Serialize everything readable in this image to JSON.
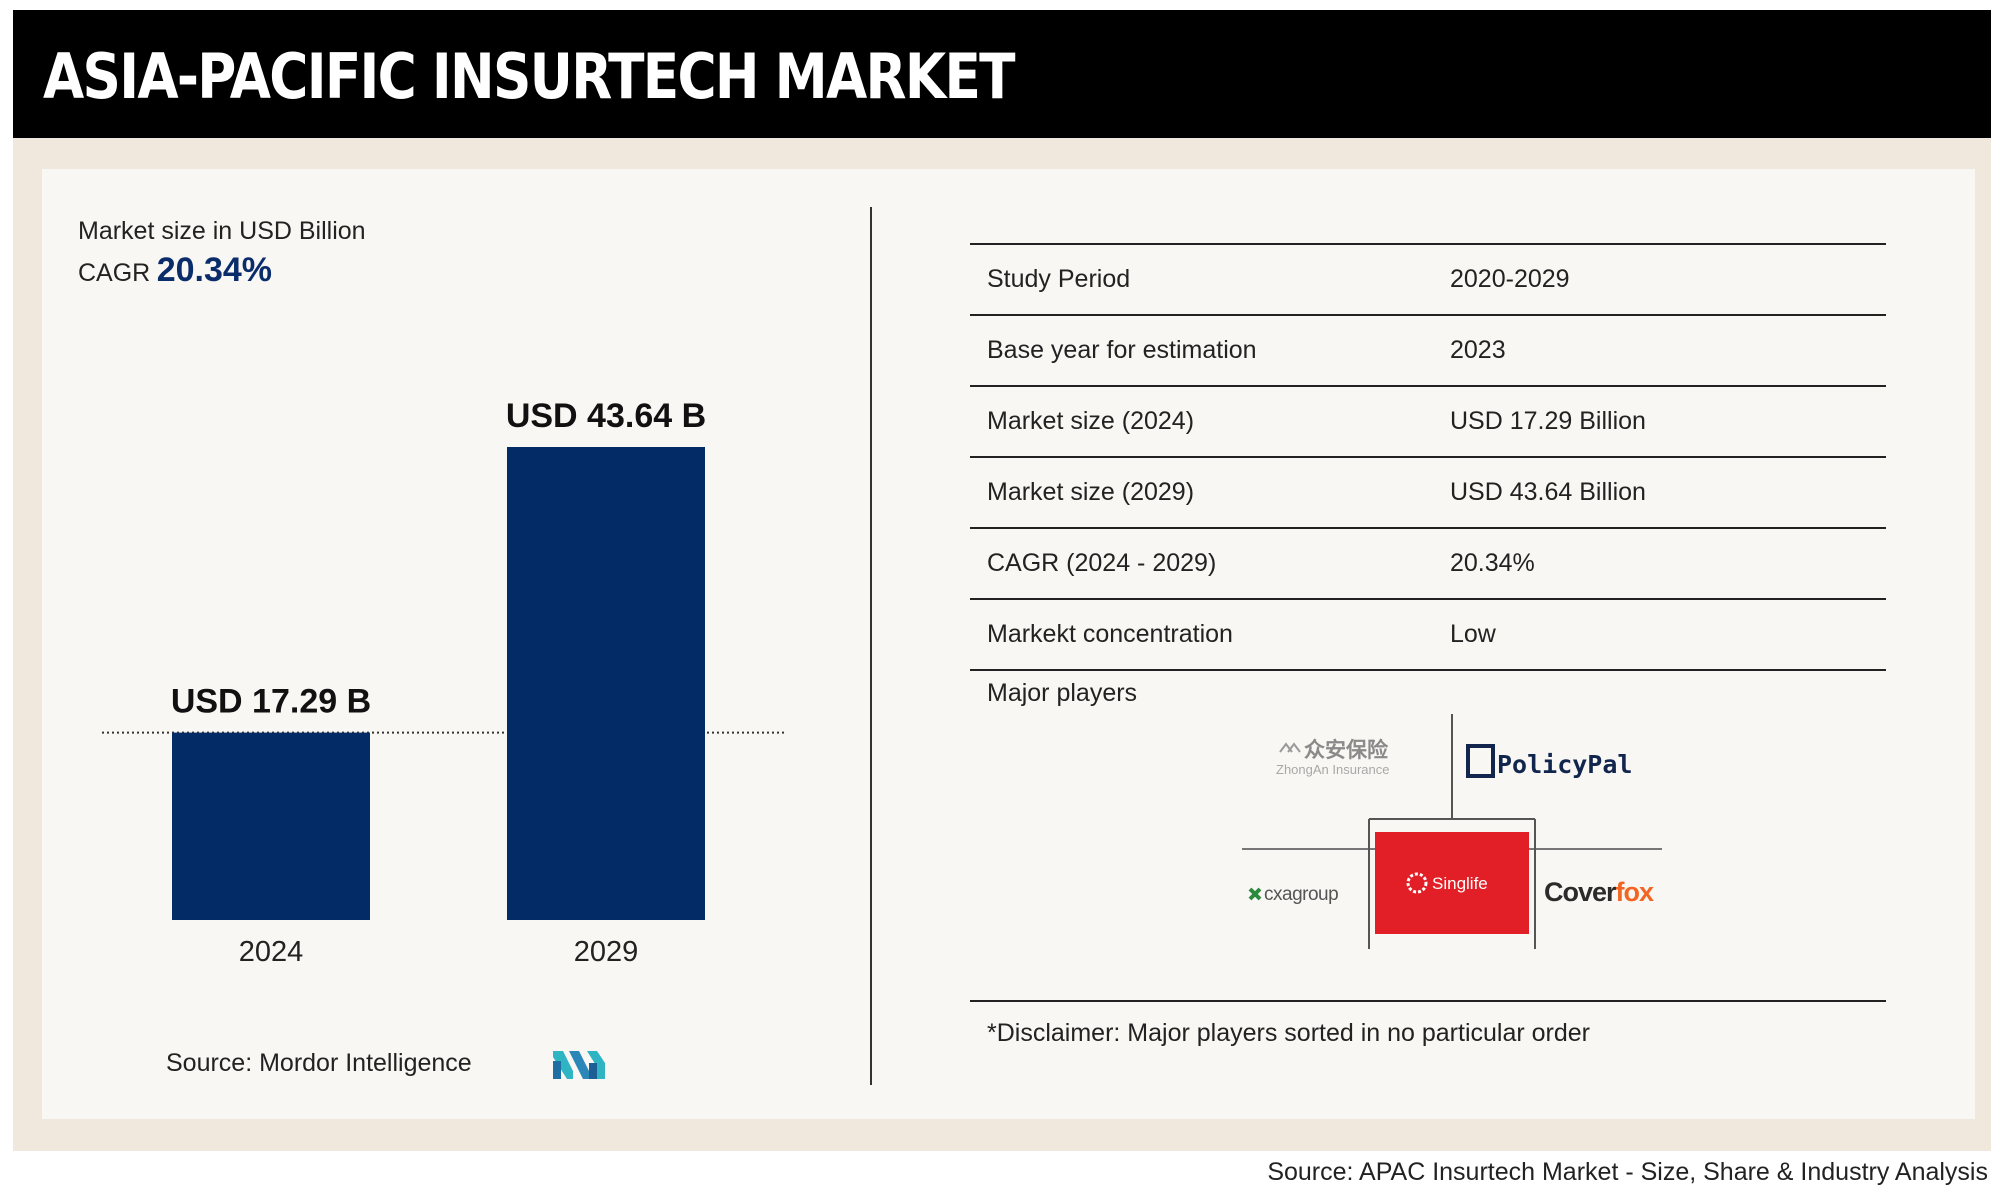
{
  "header": {
    "title": "ASIA-PACIFIC INSURTECH MARKET"
  },
  "left": {
    "subtitle": "Market size in USD Billion",
    "cagr_label": "CAGR",
    "cagr_value": "20.34%",
    "source": "Source: Mordor Intelligence"
  },
  "colors": {
    "bar": "#032b66",
    "accent": "#0a2c6b",
    "header_bg": "#000000",
    "frame_bg": "#f0e8dc",
    "panel_bg": "#f9f7f3",
    "singlife_red": "#e21f26",
    "coverfox_orange": "#f26522"
  },
  "chart_data": {
    "type": "bar",
    "categories": [
      "2024",
      "2029"
    ],
    "values": [
      17.29,
      43.64
    ],
    "data_labels": [
      "USD 17.29 B",
      "USD 43.64 B"
    ],
    "title": "",
    "xlabel": "",
    "ylabel": "",
    "ylim": [
      0,
      43.64
    ],
    "reference_line": "dotted line at 2024 value",
    "grid": false,
    "legend": "none"
  },
  "table": {
    "rows": [
      {
        "label": "Study Period",
        "value": "2020-2029"
      },
      {
        "label": "Base year for estimation",
        "value": "2023"
      },
      {
        "label": "Market size (2024)",
        "value": "USD 17.29 Billion"
      },
      {
        "label": "Market size (2029)",
        "value": "USD 43.64 Billion"
      },
      {
        "label": "CAGR (2024 - 2029)",
        "value": "20.34%"
      },
      {
        "label": "Markekt concentration",
        "value": "Low"
      }
    ],
    "players_label": "Major players"
  },
  "players": {
    "zhongan_cn": "众安保险",
    "zhongan_en": "ZhongAn Insurance",
    "policypal": "PolicyPal",
    "cxagroup": "cxagroup",
    "singlife": "Singlife",
    "coverfox_a": "Cover",
    "coverfox_b": "fox"
  },
  "icons": [
    "mordor-intelligence-logo",
    "zhongan-logo",
    "policypal-logo",
    "cxagroup-logo",
    "singlife-logo",
    "coverfox-logo"
  ],
  "disclaimer": "*Disclaimer: Major players sorted in no particular order",
  "footer": {
    "source": "Source: APAC Insurtech Market - Size, Share & Industry Analysis"
  }
}
